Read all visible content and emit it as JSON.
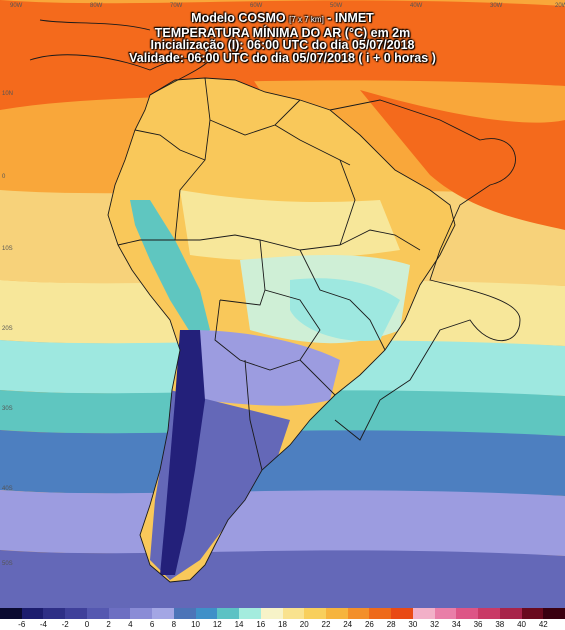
{
  "header": {
    "model_line": "Modelo COSMO",
    "model_resolution": "[7 x 7 km]",
    "model_source": "- INMET",
    "variable": "TEMPERATURA MÍNIMA DO AR (°C) em 2m",
    "init": "Inicialização (I): 06:00 UTC do dia 05/07/2018",
    "valid": "Validade: 06:00 UTC do dia 05/07/2018 ( i + 0 horas )"
  },
  "map": {
    "longitude_labels": [
      "90W",
      "80W",
      "70W",
      "60W",
      "50W",
      "40W",
      "30W",
      "20W"
    ],
    "latitude_labels": [
      "10N",
      "0",
      "10S",
      "20S",
      "30S",
      "40S",
      "50S"
    ],
    "colors": {
      "ocean_hot": "#f46a1c",
      "ocean_warm": "#f9a73a",
      "land_warm": "#f9c85a",
      "land_mild": "#f7e79a",
      "cool": "#9ee8e0",
      "teal": "#5fc6c0",
      "blue": "#4d7fc0",
      "lavender": "#9c9ce0",
      "purple": "#6468b8",
      "navy": "#23207a"
    }
  },
  "colorbar": {
    "labels": [
      "-6",
      "-4",
      "-2",
      "0",
      "2",
      "4",
      "6",
      "8",
      "10",
      "12",
      "14",
      "16",
      "18",
      "20",
      "22",
      "24",
      "26",
      "28",
      "30",
      "32",
      "34",
      "36",
      "38",
      "40",
      "42"
    ],
    "colors": [
      "#0a0a30",
      "#1c1d6e",
      "#2e2f86",
      "#3f409a",
      "#5558b0",
      "#6d6fc2",
      "#8a8cd6",
      "#a3a6e4",
      "#4c74b8",
      "#3f90c8",
      "#5cc2c4",
      "#a4ecde",
      "#f7f3c8",
      "#f9e28e",
      "#f8cf5c",
      "#f6b43e",
      "#f38f2a",
      "#ee6a1a",
      "#e94a14",
      "#f2b0c8",
      "#e97ea8",
      "#dd5586",
      "#c93a66",
      "#a8244a",
      "#6a0a1e",
      "#3a0010"
    ]
  }
}
